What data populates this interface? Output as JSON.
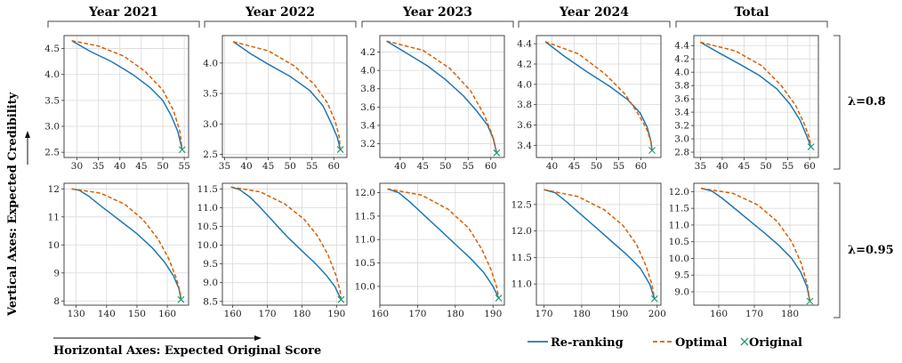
{
  "figure": {
    "column_titles": [
      "Year 2021",
      "Year 2022",
      "Year 2023",
      "Year 2024",
      "Total"
    ],
    "row_labels": [
      "λ=0.8",
      "λ=0.95"
    ],
    "x_axis_caption": "Horizontal Axes: Expected Original Score",
    "y_axis_caption": "Vertical Axes: Expected Credibility",
    "legend": [
      {
        "label": "Re-ranking",
        "color": "#1f77b4",
        "style": "solid"
      },
      {
        "label": "Optimal",
        "color": "#d95f02",
        "style": "dashed"
      },
      {
        "label": "Original",
        "color": "#1b9e77",
        "style": "x-marker"
      }
    ]
  },
  "chart_data": [
    {
      "type": "line",
      "column": "Year 2021",
      "row": "λ=0.8",
      "xlim": [
        27,
        56
      ],
      "ylim": [
        2.4,
        4.75
      ],
      "xticks": [
        30,
        35,
        40,
        45,
        50,
        55
      ],
      "yticks": [
        2.5,
        3.0,
        3.5,
        4.0,
        4.5
      ],
      "start": [
        28.8,
        4.65
      ],
      "end": [
        54.5,
        2.55
      ],
      "original": [
        54.5,
        2.55
      ],
      "series": [
        {
          "name": "Re-ranking",
          "x": [
            28.8,
            33,
            38,
            43,
            47,
            50,
            52,
            53.5,
            54.5
          ],
          "y": [
            4.65,
            4.45,
            4.25,
            4.0,
            3.75,
            3.5,
            3.2,
            2.9,
            2.55
          ]
        },
        {
          "name": "Optimal",
          "x": [
            28.8,
            35,
            41,
            46,
            50,
            52.5,
            54,
            54.5
          ],
          "y": [
            4.65,
            4.55,
            4.35,
            4.05,
            3.7,
            3.3,
            2.9,
            2.55
          ]
        }
      ]
    },
    {
      "type": "line",
      "column": "Year 2022",
      "row": "λ=0.8",
      "xlim": [
        34.5,
        63
      ],
      "ylim": [
        2.45,
        4.45
      ],
      "xticks": [
        35,
        40,
        45,
        50,
        55,
        60
      ],
      "yticks": [
        2.5,
        3.0,
        3.5,
        4.0
      ],
      "start": [
        37,
        4.35
      ],
      "end": [
        61.5,
        2.58
      ],
      "original": [
        61.5,
        2.58
      ],
      "series": [
        {
          "name": "Re-ranking",
          "x": [
            37,
            41,
            45,
            50,
            54.5,
            57.5,
            59.5,
            60.8,
            61.5
          ],
          "y": [
            4.35,
            4.15,
            3.98,
            3.78,
            3.55,
            3.3,
            3.0,
            2.78,
            2.58
          ]
        },
        {
          "name": "Optimal",
          "x": [
            37,
            45,
            51,
            55.5,
            58.5,
            60.3,
            61.2,
            61.5
          ],
          "y": [
            4.35,
            4.2,
            3.95,
            3.65,
            3.35,
            3.05,
            2.8,
            2.58
          ]
        }
      ]
    },
    {
      "type": "line",
      "column": "Year 2023",
      "row": "λ=0.8",
      "xlim": [
        35.5,
        63
      ],
      "ylim": [
        3.05,
        4.38
      ],
      "xticks": [
        40,
        45,
        50,
        55,
        60
      ],
      "yticks": [
        3.2,
        3.4,
        3.6,
        3.8,
        4.0,
        4.2
      ],
      "start": [
        37,
        4.32
      ],
      "end": [
        61.3,
        3.1
      ],
      "original": [
        61.3,
        3.1
      ],
      "series": [
        {
          "name": "Re-ranking",
          "x": [
            37,
            41,
            46,
            50,
            54,
            57,
            59.3,
            60.6,
            61.3
          ],
          "y": [
            4.32,
            4.2,
            4.05,
            3.9,
            3.72,
            3.55,
            3.4,
            3.25,
            3.1
          ]
        },
        {
          "name": "Optimal",
          "x": [
            37,
            45,
            51,
            55.5,
            58.5,
            60.3,
            61.3
          ],
          "y": [
            4.32,
            4.22,
            4.02,
            3.78,
            3.52,
            3.3,
            3.1
          ]
        }
      ]
    },
    {
      "type": "line",
      "column": "Year 2024",
      "row": "λ=0.8",
      "xlim": [
        36.5,
        64.5
      ],
      "ylim": [
        3.28,
        4.48
      ],
      "xticks": [
        40,
        45,
        50,
        55,
        60
      ],
      "yticks": [
        3.4,
        3.6,
        3.8,
        4.0,
        4.2,
        4.4
      ],
      "start": [
        38.5,
        4.42
      ],
      "end": [
        62.5,
        3.35
      ],
      "original": [
        62.5,
        3.35
      ],
      "series": [
        {
          "name": "Re-ranking",
          "x": [
            38.5,
            43,
            48,
            53,
            57,
            59.8,
            61.4,
            62.2,
            62.5
          ],
          "y": [
            4.42,
            4.27,
            4.12,
            3.98,
            3.85,
            3.72,
            3.58,
            3.45,
            3.35
          ]
        },
        {
          "name": "Optimal",
          "x": [
            38.5,
            46,
            52,
            56.5,
            59.5,
            61.4,
            62.3,
            62.5
          ],
          "y": [
            4.42,
            4.3,
            4.1,
            3.9,
            3.7,
            3.55,
            3.43,
            3.35
          ]
        }
      ]
    },
    {
      "type": "line",
      "column": "Total",
      "row": "λ=0.8",
      "xlim": [
        33.5,
        62
      ],
      "ylim": [
        2.72,
        4.55
      ],
      "xticks": [
        35,
        40,
        45,
        50,
        55,
        60
      ],
      "yticks": [
        2.8,
        3.0,
        3.2,
        3.4,
        3.6,
        3.8,
        4.0,
        4.2,
        4.4
      ],
      "start": [
        35,
        4.45
      ],
      "end": [
        60.3,
        2.88
      ],
      "original": [
        60.3,
        2.88
      ],
      "series": [
        {
          "name": "Re-ranking",
          "x": [
            35,
            39,
            44,
            48.5,
            52.5,
            55.5,
            57.8,
            59.3,
            60.3
          ],
          "y": [
            4.45,
            4.3,
            4.12,
            3.95,
            3.75,
            3.52,
            3.28,
            3.05,
            2.88
          ]
        },
        {
          "name": "Optimal",
          "x": [
            35,
            43,
            49,
            53.5,
            56.8,
            58.8,
            59.9,
            60.3
          ],
          "y": [
            4.45,
            4.32,
            4.1,
            3.8,
            3.5,
            3.22,
            3.02,
            2.88
          ]
        }
      ]
    },
    {
      "type": "line",
      "column": "Year 2021",
      "row": "λ=0.95",
      "xlim": [
        126,
        167
      ],
      "ylim": [
        7.85,
        12.2
      ],
      "xticks": [
        130,
        140,
        150,
        160
      ],
      "yticks": [
        8.0,
        9.0,
        10.0,
        11.0,
        12.0
      ],
      "start": [
        128.5,
        12.0
      ],
      "end": [
        164.5,
        8.05
      ],
      "original": [
        164.5,
        8.05
      ],
      "series": [
        {
          "name": "Re-ranking",
          "x": [
            128.5,
            131,
            134,
            138,
            144,
            150,
            155,
            159,
            162,
            163.8,
            164.5
          ],
          "y": [
            12.0,
            11.95,
            11.75,
            11.4,
            10.9,
            10.4,
            9.9,
            9.4,
            8.9,
            8.45,
            8.05
          ]
        },
        {
          "name": "Optimal",
          "x": [
            128.5,
            138,
            146,
            152,
            157,
            160.5,
            163,
            164.2,
            164.5
          ],
          "y": [
            12.0,
            11.85,
            11.45,
            10.9,
            10.2,
            9.5,
            8.8,
            8.35,
            8.05
          ]
        }
      ]
    },
    {
      "type": "line",
      "column": "Year 2022",
      "row": "λ=0.95",
      "xlim": [
        157,
        193
      ],
      "ylim": [
        8.4,
        11.65
      ],
      "xticks": [
        160,
        170,
        180,
        190
      ],
      "yticks": [
        8.5,
        9.0,
        9.5,
        10.0,
        10.5,
        11.0,
        11.5
      ],
      "start": [
        159.5,
        11.55
      ],
      "end": [
        191.3,
        8.55
      ],
      "original": [
        191.3,
        8.55
      ],
      "series": [
        {
          "name": "Re-ranking",
          "x": [
            159.5,
            162,
            165,
            168,
            172,
            176,
            180,
            184,
            187,
            189.5,
            191.3
          ],
          "y": [
            11.55,
            11.48,
            11.28,
            11.0,
            10.6,
            10.2,
            9.85,
            9.5,
            9.2,
            8.9,
            8.55
          ]
        },
        {
          "name": "Optimal",
          "x": [
            159.5,
            168,
            175,
            180.5,
            184.5,
            187.5,
            189.8,
            191,
            191.3
          ],
          "y": [
            11.55,
            11.42,
            11.1,
            10.7,
            10.25,
            9.75,
            9.2,
            8.8,
            8.55
          ]
        }
      ]
    },
    {
      "type": "line",
      "column": "Year 2023",
      "row": "λ=0.95",
      "xlim": [
        160,
        193
      ],
      "ylim": [
        9.6,
        12.2
      ],
      "xticks": [
        160,
        170,
        180,
        190
      ],
      "yticks": [
        10.0,
        10.5,
        11.0,
        11.5,
        12.0
      ],
      "start": [
        162,
        12.08
      ],
      "end": [
        191.5,
        9.75
      ],
      "original": [
        191.5,
        9.75
      ],
      "series": [
        {
          "name": "Re-ranking",
          "x": [
            162,
            165,
            168,
            172,
            176,
            180,
            184,
            187.5,
            190,
            191.5
          ],
          "y": [
            12.08,
            12.0,
            11.8,
            11.5,
            11.2,
            10.9,
            10.6,
            10.3,
            10.0,
            9.75
          ]
        },
        {
          "name": "Optimal",
          "x": [
            162,
            171,
            178,
            183.5,
            187,
            189.5,
            191,
            191.5
          ],
          "y": [
            12.08,
            11.95,
            11.65,
            11.25,
            10.8,
            10.35,
            9.98,
            9.75
          ]
        }
      ]
    },
    {
      "type": "line",
      "column": "Year 2024",
      "row": "λ=0.95",
      "xlim": [
        168,
        201
      ],
      "ylim": [
        10.6,
        12.9
      ],
      "xticks": [
        170,
        180,
        190,
        200
      ],
      "yticks": [
        11.0,
        11.5,
        12.0,
        12.5
      ],
      "start": [
        170,
        12.78
      ],
      "end": [
        199.3,
        10.72
      ],
      "original": [
        199.3,
        10.72
      ],
      "series": [
        {
          "name": "Re-ranking",
          "x": [
            170,
            173,
            176,
            180,
            184,
            188,
            192,
            195.5,
            198,
            199.3
          ],
          "y": [
            12.78,
            12.72,
            12.55,
            12.3,
            12.05,
            11.8,
            11.55,
            11.3,
            11.0,
            10.72
          ]
        },
        {
          "name": "Optimal",
          "x": [
            170,
            179,
            186,
            191,
            194.5,
            197,
            198.6,
            199.3
          ],
          "y": [
            12.78,
            12.65,
            12.4,
            12.1,
            11.75,
            11.35,
            11.0,
            10.72
          ]
        }
      ]
    },
    {
      "type": "line",
      "column": "Total",
      "row": "λ=0.95",
      "xlim": [
        153,
        188
      ],
      "ylim": [
        8.6,
        12.25
      ],
      "xticks": [
        160,
        170,
        180
      ],
      "yticks": [
        9.0,
        9.5,
        10.0,
        10.5,
        11.0,
        11.5,
        12.0
      ],
      "start": [
        155,
        12.1
      ],
      "end": [
        185.6,
        8.72
      ],
      "original": [
        185.6,
        8.72
      ],
      "series": [
        {
          "name": "Re-ranking",
          "x": [
            155,
            158,
            161,
            165,
            169,
            173,
            177,
            180.5,
            183,
            184.8,
            185.6
          ],
          "y": [
            12.1,
            12.02,
            11.8,
            11.45,
            11.1,
            10.75,
            10.38,
            10.0,
            9.6,
            9.15,
            8.72
          ]
        },
        {
          "name": "Optimal",
          "x": [
            155,
            164,
            171,
            176.5,
            180.5,
            183.2,
            184.9,
            185.6
          ],
          "y": [
            12.1,
            11.95,
            11.6,
            11.1,
            10.5,
            9.85,
            9.2,
            8.72
          ]
        }
      ]
    }
  ]
}
